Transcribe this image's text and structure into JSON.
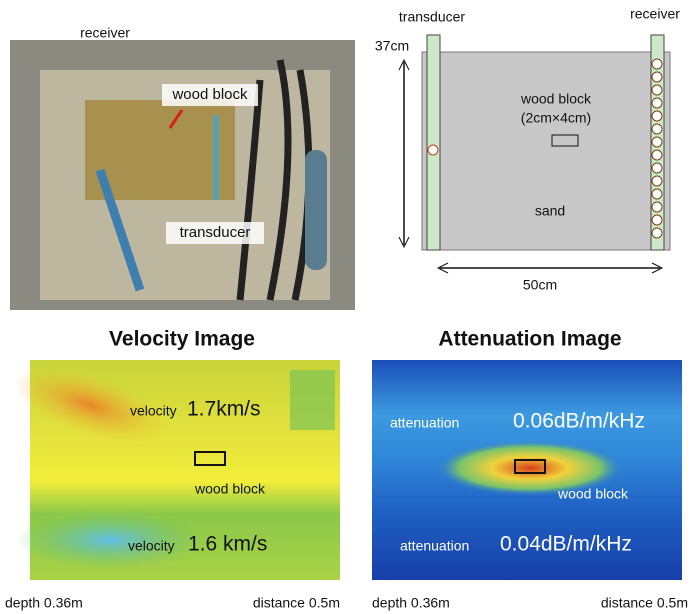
{
  "photo": {
    "labels": [
      "receiver",
      "wood block",
      "transducer"
    ]
  },
  "diagram": {
    "transducer": "transducer",
    "receiver": "receiver",
    "height": "37cm",
    "block": "wood block",
    "block_size": "(2cm×4cm)",
    "sand": "sand",
    "width": "50cm"
  },
  "velocity": {
    "title": "Velocity Image",
    "upper_label": "velocity",
    "upper_value": "1.7km/s",
    "lower_label": "velocity",
    "lower_value": "1.6 km/s",
    "block": "wood block",
    "depth": "depth 0.36m",
    "distance": "distance 0.5m"
  },
  "attenuation": {
    "title": "Attenuation Image",
    "upper_label": "attenuation",
    "upper_value": "0.06dB/m/kHz",
    "lower_label": "attenuation",
    "lower_value": "0.04dB/m/kHz",
    "block": "wood block",
    "depth": "depth 0.36m",
    "distance": "distance 0.5m"
  }
}
